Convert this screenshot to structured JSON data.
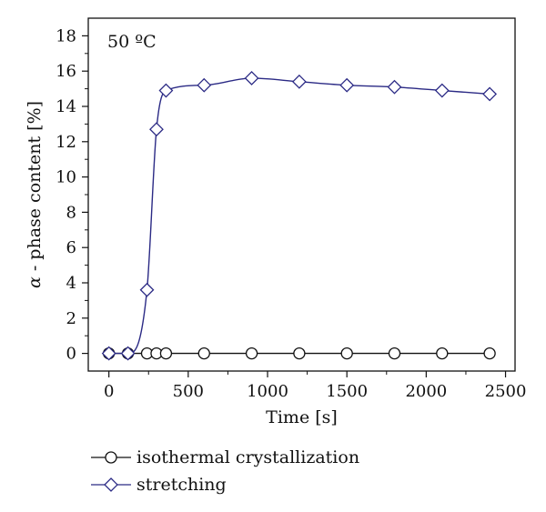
{
  "chart_data": {
    "type": "line",
    "title": "",
    "annotation": "50 ºC",
    "xlabel": "Time [s]",
    "ylabel_symbol": "α",
    "ylabel": "- phase content [%]",
    "xlim": [
      -130,
      2560
    ],
    "ylim": [
      -1,
      19
    ],
    "xticks": [
      0,
      500,
      1000,
      1500,
      2000,
      2500
    ],
    "yticks": [
      0,
      2,
      4,
      6,
      8,
      10,
      12,
      14,
      16,
      18
    ],
    "grid": false,
    "legend_position": "bottom-left",
    "series": [
      {
        "name": "isothermal crystallization",
        "marker": "circle",
        "color": "#111111",
        "x": [
          0,
          120,
          240,
          300,
          360,
          600,
          900,
          1200,
          1500,
          1800,
          2100,
          2400
        ],
        "y": [
          0,
          0,
          0,
          0,
          0,
          0,
          0,
          0,
          0,
          0,
          0,
          0
        ]
      },
      {
        "name": "stretching",
        "marker": "diamond",
        "color": "#2b2a85",
        "x": [
          0,
          120,
          240,
          300,
          360,
          600,
          900,
          1200,
          1500,
          1800,
          2100,
          2400
        ],
        "y": [
          0,
          0,
          3.6,
          12.7,
          14.9,
          15.2,
          15.6,
          15.4,
          15.2,
          15.1,
          14.9,
          14.7
        ]
      }
    ]
  }
}
